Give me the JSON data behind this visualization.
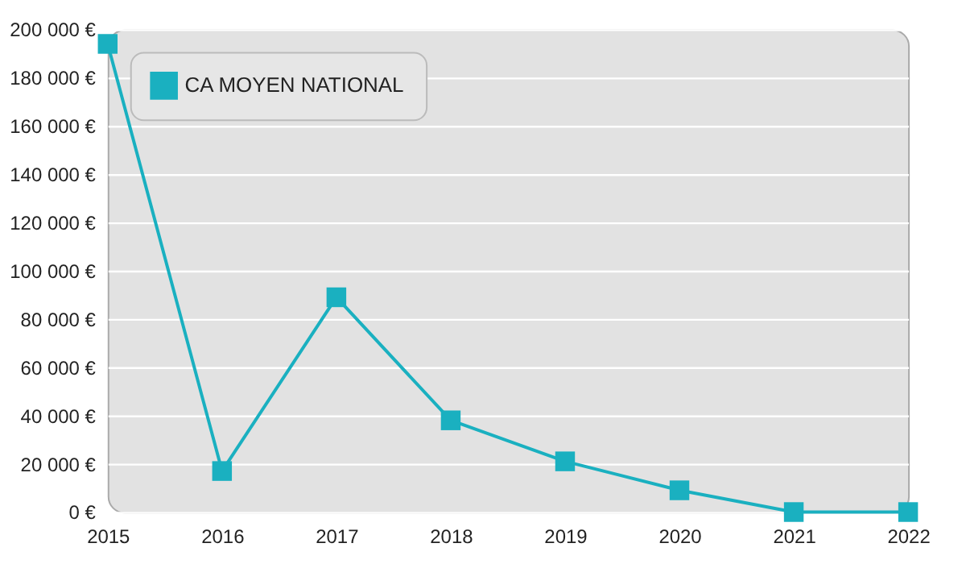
{
  "chart_data": {
    "type": "line",
    "x": [
      2015,
      2016,
      2017,
      2018,
      2019,
      2020,
      2021,
      2022
    ],
    "series": [
      {
        "name": "CA MOYEN NATIONAL",
        "color": "#1ab0c0",
        "values": [
          194000,
          17000,
          89000,
          38000,
          21000,
          9000,
          0,
          0
        ]
      }
    ],
    "xlim": [
      2015,
      2022
    ],
    "xticks": [
      2015,
      2016,
      2017,
      2018,
      2019,
      2020,
      2021,
      2022
    ],
    "ylim": [
      0,
      200000
    ],
    "yticks": [
      {
        "value": 0,
        "label": "0 €"
      },
      {
        "value": 20000,
        "label": "20 000 €"
      },
      {
        "value": 40000,
        "label": "40 000 €"
      },
      {
        "value": 60000,
        "label": "60 000 €"
      },
      {
        "value": 80000,
        "label": "80 000 €"
      },
      {
        "value": 100000,
        "label": "100 000 €"
      },
      {
        "value": 120000,
        "label": "120 000 €"
      },
      {
        "value": 140000,
        "label": "140 000 €"
      },
      {
        "value": 160000,
        "label": "160 000 €"
      },
      {
        "value": 180000,
        "label": "180 000 €"
      },
      {
        "value": 200000,
        "label": "200 000 €"
      }
    ],
    "grid": "y",
    "legend": "top left",
    "marker": "square",
    "line_style": "solid"
  }
}
